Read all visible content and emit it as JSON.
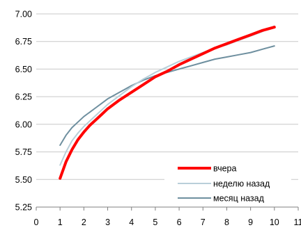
{
  "chart_data": {
    "type": "line",
    "title": "",
    "xlabel": "",
    "ylabel": "",
    "xlim": [
      0,
      11
    ],
    "ylim": [
      5.25,
      7.0
    ],
    "x_ticks": [
      "0",
      "1",
      "2",
      "3",
      "4",
      "5",
      "6",
      "7",
      "8",
      "9",
      "10",
      "11"
    ],
    "y_ticks": [
      "5.25",
      "5.50",
      "5.75",
      "6.00",
      "6.25",
      "6.50",
      "6.75",
      "7.00"
    ],
    "grid": "horizontal",
    "legend_position": "bottom-right",
    "series": [
      {
        "name": "вчера",
        "color": "#ff0000",
        "style": "thick",
        "x": [
          1,
          1.25,
          1.5,
          1.75,
          2,
          2.25,
          2.5,
          2.75,
          3,
          3.5,
          4,
          4.5,
          5,
          5.5,
          6,
          6.5,
          7,
          7.5,
          8,
          8.5,
          9,
          9.5,
          10
        ],
        "values": [
          5.51,
          5.66,
          5.77,
          5.86,
          5.93,
          5.99,
          6.04,
          6.09,
          6.14,
          6.22,
          6.29,
          6.36,
          6.43,
          6.48,
          6.54,
          6.59,
          6.64,
          6.69,
          6.73,
          6.77,
          6.81,
          6.85,
          6.88
        ]
      },
      {
        "name": "неделю назад",
        "color": "#b9cfd9",
        "style": "thin",
        "x": [
          1,
          1.25,
          1.5,
          1.75,
          2,
          2.25,
          2.5,
          2.75,
          3,
          3.5,
          4,
          4.5,
          5,
          5.5,
          6,
          6.5,
          7,
          7.5,
          8,
          8.5,
          9,
          9.5,
          10
        ],
        "values": [
          5.63,
          5.75,
          5.85,
          5.92,
          5.98,
          6.03,
          6.08,
          6.13,
          6.18,
          6.26,
          6.34,
          6.41,
          6.47,
          6.52,
          6.57,
          6.61,
          6.65,
          6.69,
          6.72,
          6.76,
          6.8,
          6.84,
          6.89
        ]
      },
      {
        "name": "месяц назад",
        "color": "#6e8f9f",
        "style": "thin",
        "x": [
          1,
          1.25,
          1.5,
          1.75,
          2,
          2.25,
          2.5,
          2.75,
          3,
          3.5,
          4,
          4.5,
          5,
          5.5,
          6,
          6.5,
          7,
          7.5,
          8,
          8.5,
          9,
          9.5,
          10
        ],
        "values": [
          5.81,
          5.9,
          5.97,
          6.02,
          6.07,
          6.11,
          6.15,
          6.19,
          6.23,
          6.29,
          6.35,
          6.4,
          6.44,
          6.47,
          6.5,
          6.53,
          6.56,
          6.59,
          6.61,
          6.63,
          6.65,
          6.68,
          6.71
        ]
      }
    ]
  }
}
